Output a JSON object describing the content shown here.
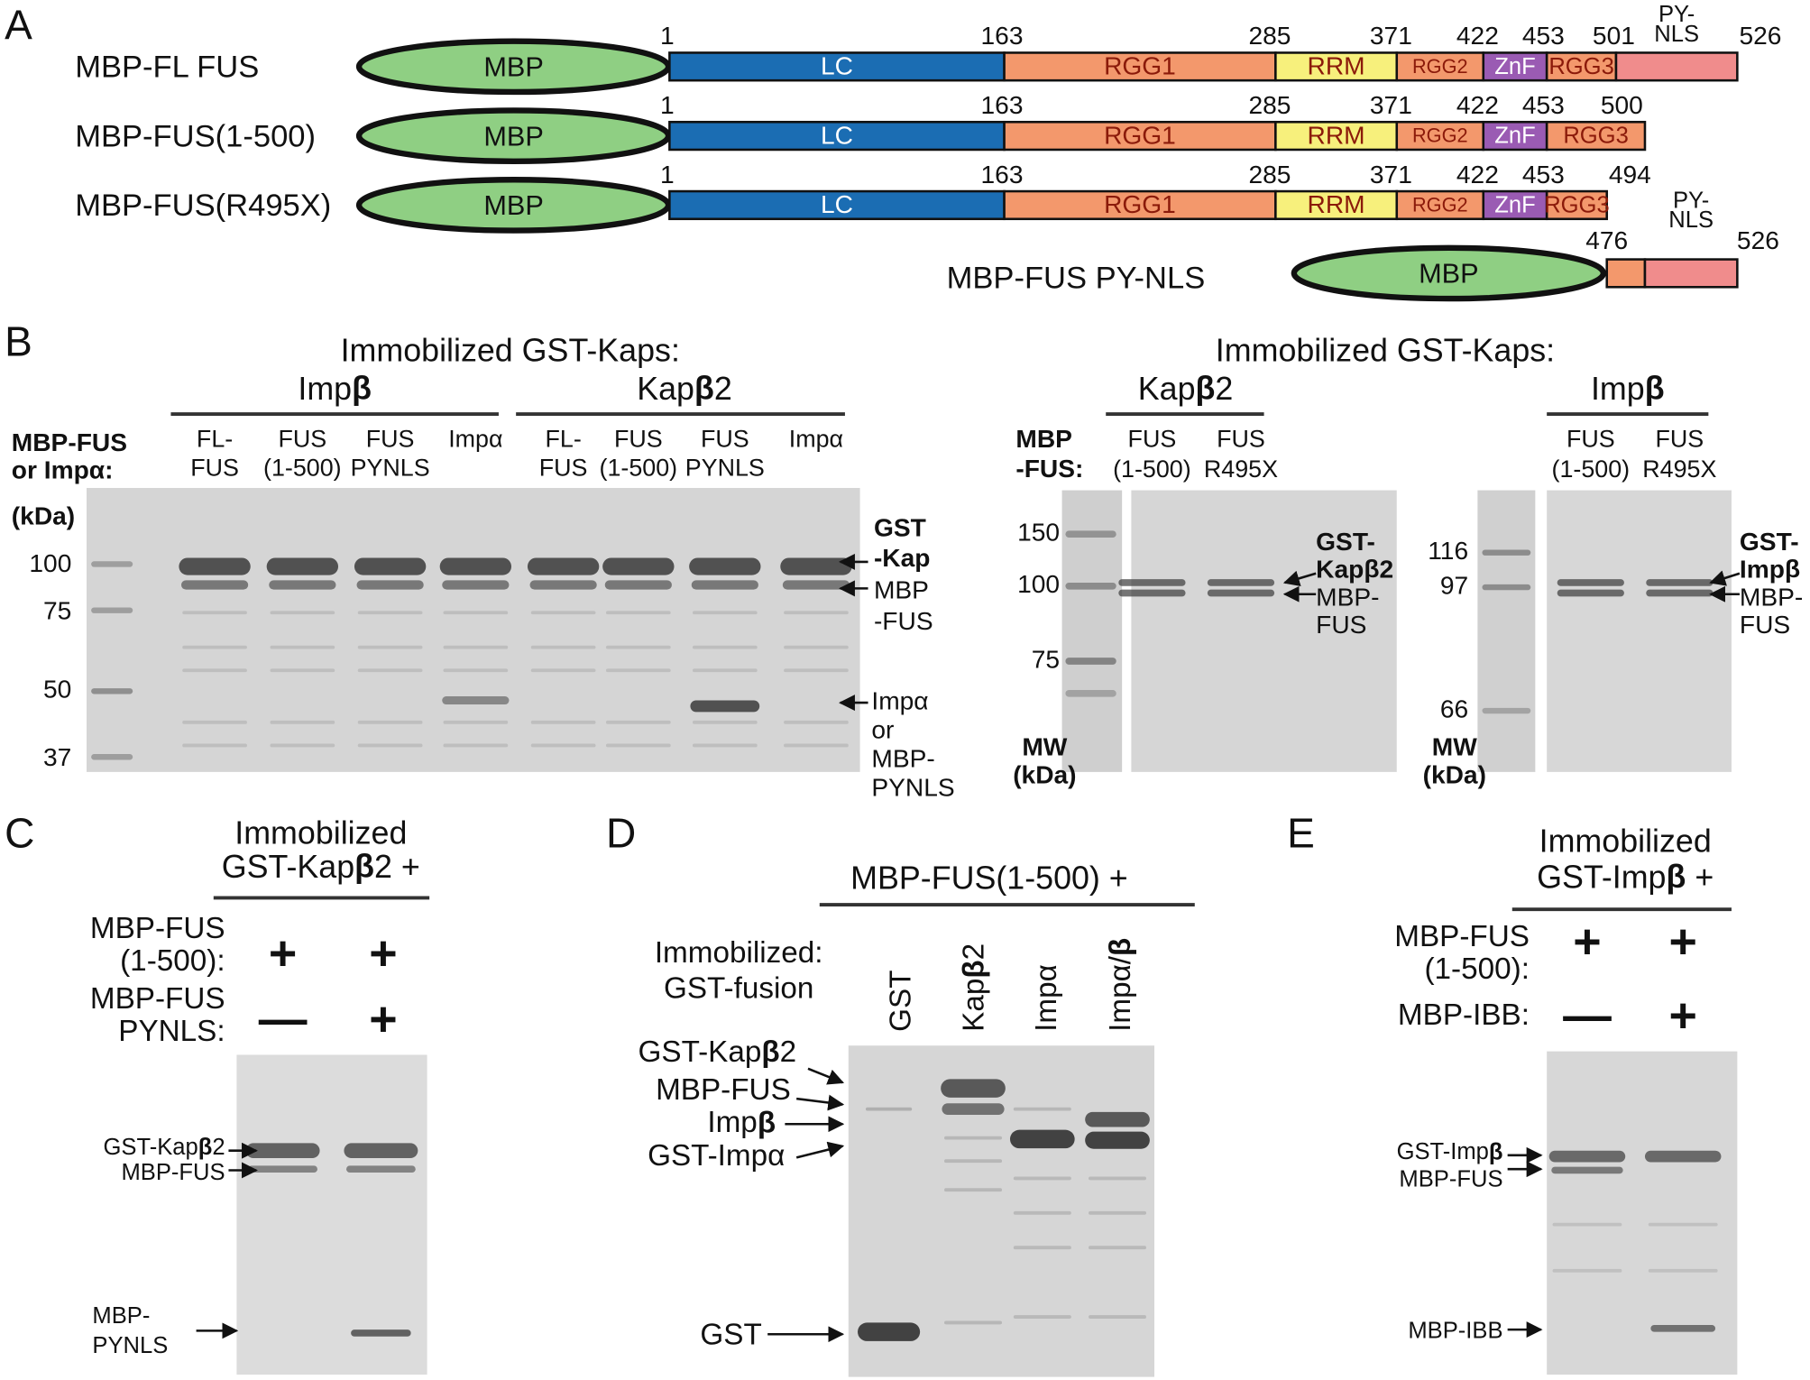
{
  "panel_a": {
    "label": "A",
    "constructs": [
      {
        "name": "MBP-FL FUS",
        "tag": "MBP",
        "domains": [
          "LC",
          "RGG1",
          "RRM",
          "RGG2",
          "ZnF",
          "RGG3"
        ],
        "residues": [
          1,
          163,
          285,
          371,
          422,
          453,
          501,
          526
        ],
        "nls_label": [
          "PY-",
          "NLS"
        ]
      },
      {
        "name": "MBP-FUS(1-500)",
        "tag": "MBP",
        "domains": [
          "LC",
          "RGG1",
          "RRM",
          "RGG2",
          "ZnF",
          "RGG3"
        ],
        "residues": [
          1,
          163,
          285,
          371,
          422,
          453,
          500
        ]
      },
      {
        "name": "MBP-FUS(R495X)",
        "tag": "MBP",
        "domains": [
          "LC",
          "RGG1",
          "RRM",
          "RGG2",
          "ZnF",
          "RGG3"
        ],
        "residues": [
          1,
          163,
          285,
          371,
          422,
          453,
          494
        ]
      },
      {
        "name": "MBP-FUS PY-NLS",
        "tag": "MBP",
        "residues": [
          476,
          526
        ],
        "nls_label": [
          "PY-",
          "NLS"
        ]
      }
    ]
  },
  "panel_b": {
    "label": "B",
    "left": {
      "header": "Immobilized GST-Kaps:",
      "groups": [
        "Impβ",
        "Kapβ2"
      ],
      "row_label": [
        "MBP-FUS",
        "or Impα:"
      ],
      "unit": "(kDa)",
      "lanes": [
        [
          "FL-",
          "FUS"
        ],
        [
          "FUS",
          "(1-500)"
        ],
        [
          "FUS",
          "PYNLS"
        ],
        [
          "Impα"
        ],
        [
          "FL-",
          "FUS"
        ],
        [
          "FUS",
          "(1-500)"
        ],
        [
          "FUS",
          "PYNLS"
        ],
        [
          "Impα"
        ]
      ],
      "markers": [
        100,
        75,
        50,
        37
      ],
      "band_labels": [
        [
          "GST",
          "-Kap"
        ],
        [
          "MBP",
          "-FUS"
        ],
        [
          "Impα",
          "or",
          "MBP-",
          "PYNLS"
        ]
      ]
    },
    "header": "Immobilized GST-Kaps:",
    "middle": {
      "group": "Kapβ2",
      "row_label": [
        "MBP",
        "-FUS:"
      ],
      "lanes": [
        [
          "FUS",
          "(1-500)"
        ],
        [
          "FUS",
          "R495X"
        ]
      ],
      "markers": [
        150,
        100,
        75
      ],
      "unit": [
        "MW",
        "(kDa)"
      ],
      "band_labels": [
        [
          "GST-",
          "Kapβ2"
        ],
        [
          "MBP-",
          "FUS"
        ]
      ]
    },
    "right": {
      "group": "Impβ",
      "lanes": [
        [
          "FUS",
          "(1-500)"
        ],
        [
          "FUS",
          "R495X"
        ]
      ],
      "markers": [
        116,
        97,
        66
      ],
      "unit": [
        "MW",
        "(kDa)"
      ],
      "band_labels": [
        [
          "GST-",
          "Impβ"
        ],
        [
          "MBP-",
          "FUS"
        ]
      ]
    }
  },
  "panel_c": {
    "label": "C",
    "header": [
      "Immobilized",
      "GST-Kapβ2 +"
    ],
    "rows": [
      {
        "label": [
          "MBP-FUS",
          "(1-500):"
        ],
        "signs": [
          "+",
          "+"
        ]
      },
      {
        "label": [
          "MBP-FUS",
          "PYNLS:"
        ],
        "signs": [
          "—",
          "+"
        ]
      }
    ],
    "band_labels": [
      [
        "GST-Kapβ2"
      ],
      [
        "MBP-FUS"
      ],
      [
        "MBP-",
        "PYNLS"
      ]
    ]
  },
  "panel_d": {
    "label": "D",
    "header": "MBP-FUS(1-500) +",
    "row_label": [
      "Immobilized:",
      "GST-fusion"
    ],
    "lanes": [
      "GST",
      "Kapβ2",
      "Impα",
      "Impα/β"
    ],
    "band_labels": [
      "GST-Kapβ2",
      "MBP-FUS",
      "Impβ",
      "GST-Impα",
      "GST"
    ]
  },
  "panel_e": {
    "label": "E",
    "header": [
      "Immobilized",
      "GST-Impβ +"
    ],
    "rows": [
      {
        "label": [
          "MBP-FUS",
          "(1-500):"
        ],
        "signs": [
          "+",
          "+"
        ]
      },
      {
        "label": [
          "MBP-IBB:"
        ],
        "signs": [
          "—",
          "+"
        ]
      }
    ],
    "band_labels": [
      "GST-Impβ",
      "MBP-FUS",
      "MBP-IBB"
    ]
  }
}
